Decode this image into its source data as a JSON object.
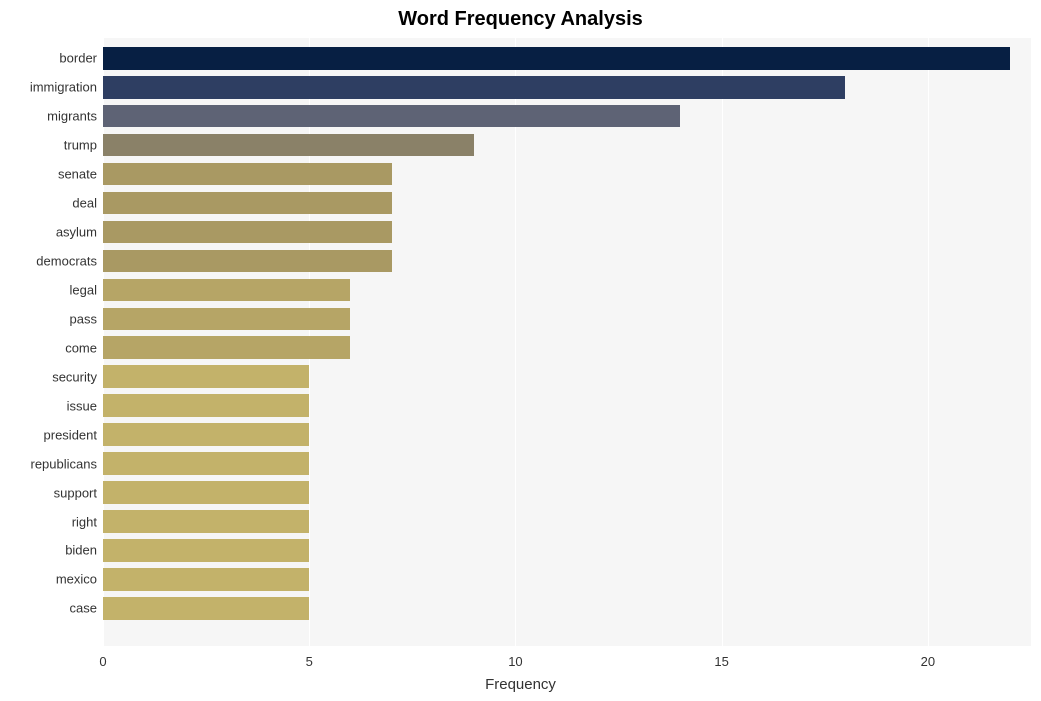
{
  "chart": {
    "type": "bar-horizontal",
    "title": "Word Frequency Analysis",
    "title_fontsize": 20,
    "title_fontweight": "bold",
    "title_color": "#000000",
    "xlabel": "Frequency",
    "xlabel_fontsize": 15,
    "xlabel_color": "#333333",
    "background_color": "#ffffff",
    "plot_background_color": "#f6f6f6",
    "grid_color": "#ffffff",
    "xlim": [
      0,
      22.5
    ],
    "xticks": [
      0,
      5,
      10,
      15,
      20
    ],
    "xtick_fontsize": 13,
    "xtick_color": "#333333",
    "ytick_fontsize": 13,
    "ytick_color": "#333333",
    "bar_height_ratio": 0.78,
    "categories": [
      "border",
      "immigration",
      "migrants",
      "trump",
      "senate",
      "deal",
      "asylum",
      "democrats",
      "legal",
      "pass",
      "come",
      "security",
      "issue",
      "president",
      "republicans",
      "support",
      "right",
      "biden",
      "mexico",
      "case"
    ],
    "values": [
      22,
      18,
      14,
      9,
      7,
      7,
      7,
      7,
      6,
      6,
      6,
      5,
      5,
      5,
      5,
      5,
      5,
      5,
      5,
      5
    ],
    "bar_colors": [
      "#071f43",
      "#2e3e62",
      "#5e6375",
      "#8a8168",
      "#a99963",
      "#a99963",
      "#a99963",
      "#a99963",
      "#b6a566",
      "#b6a566",
      "#b6a566",
      "#c3b26a",
      "#c3b26a",
      "#c3b26a",
      "#c3b26a",
      "#c3b26a",
      "#c3b26a",
      "#c3b26a",
      "#c3b26a",
      "#c3b26a"
    ]
  }
}
